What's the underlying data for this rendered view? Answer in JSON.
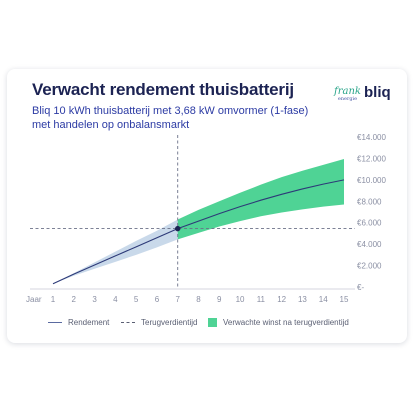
{
  "header": {
    "title": "Verwacht rendement thuisbatterij",
    "subtitle": "Bliq 10 kWh thuisbatterij met 3,68 kW omvormer (1-fase) met handelen op onbalansmarkt",
    "logo_frank": "frank",
    "logo_frank_sub": "energie",
    "logo_bliq": "bliq"
  },
  "legend": {
    "rendement": "Rendement",
    "terugverdientijd": "Terugverdientijd",
    "winst": "Verwachte winst na terugverdientijd"
  },
  "colors": {
    "title": "#1c2353",
    "subtitle": "#2c3ba4",
    "profit_band": "#4fd395",
    "uncertainty_band": "#c9d9ea",
    "line": "#2d3a78"
  },
  "chart_data": {
    "type": "area",
    "title": "Verwacht rendement thuisbatterij",
    "x_label_prefix": "Jaar",
    "x": [
      1,
      2,
      3,
      4,
      5,
      6,
      7,
      8,
      9,
      10,
      11,
      12,
      13,
      14,
      15
    ],
    "x_ticks": [
      "1",
      "2",
      "3",
      "4",
      "5",
      "6",
      "7",
      "8",
      "9",
      "10",
      "11",
      "12",
      "13",
      "14",
      "15"
    ],
    "y_ticks": [
      "€-",
      "€2.000",
      "€4.000",
      "€6.000",
      "€8.000",
      "€10.000",
      "€12.000",
      "€14.000"
    ],
    "y_tick_values": [
      0,
      2000,
      4000,
      6000,
      8000,
      10000,
      12000,
      14000
    ],
    "ylim": [
      0,
      14000
    ],
    "xlim": [
      1,
      15
    ],
    "y_axis_position": "right",
    "series": [
      {
        "name": "Rendement",
        "values": [
          300,
          1200,
          2050,
          2900,
          3750,
          4600,
          5450,
          6150,
          6850,
          7500,
          8100,
          8650,
          9150,
          9600,
          10000
        ]
      },
      {
        "values": [
          300,
          1300,
          2300,
          3300,
          4300,
          5250,
          6300,
          7200,
          8000,
          8800,
          9550,
          10250,
          10850,
          11400,
          11950
        ]
      },
      {
        "values": [
          300,
          1050,
          1700,
          2350,
          3000,
          3700,
          4450,
          5050,
          5650,
          6150,
          6600,
          6950,
          7250,
          7500,
          7700
        ]
      }
    ],
    "payback_point": {
      "x": 7,
      "y": 5450
    },
    "grid": false,
    "legend_position": "bottom"
  }
}
